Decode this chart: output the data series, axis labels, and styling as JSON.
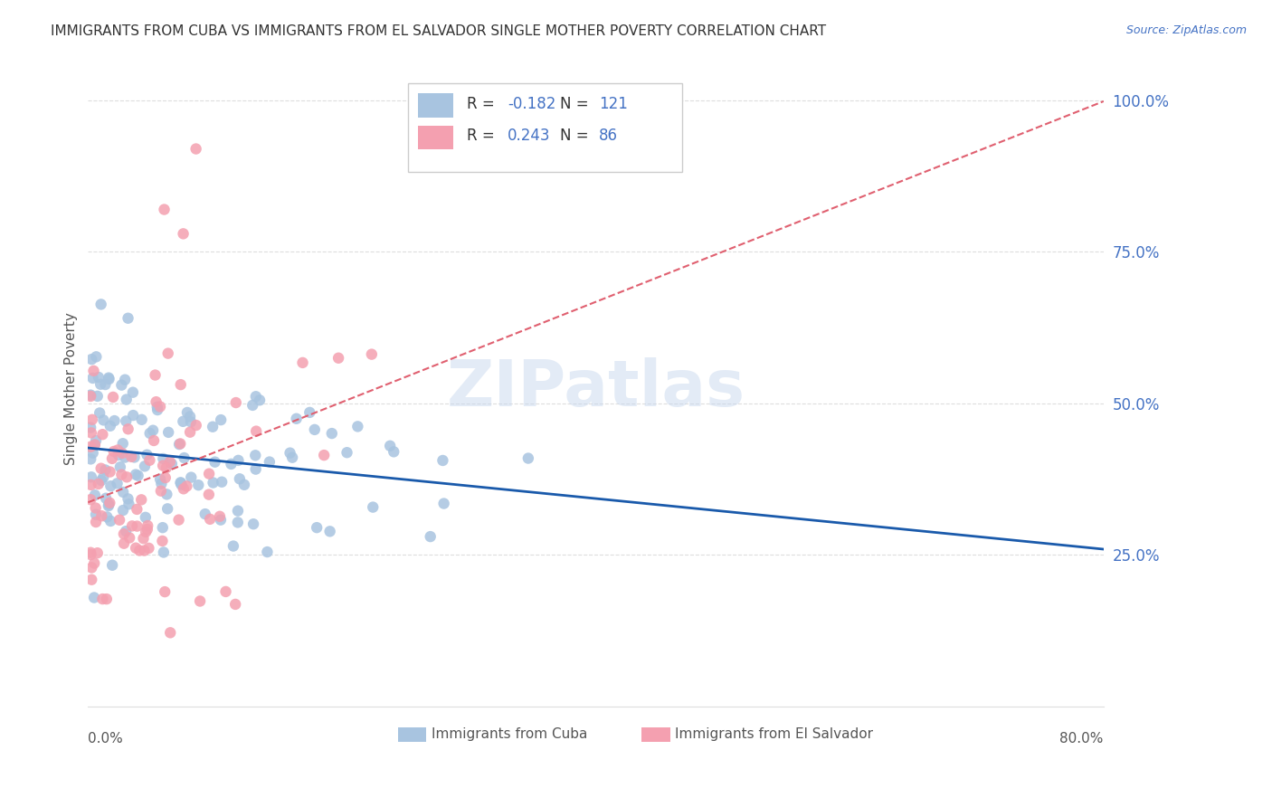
{
  "title": "IMMIGRANTS FROM CUBA VS IMMIGRANTS FROM EL SALVADOR SINGLE MOTHER POVERTY CORRELATION CHART",
  "source": "Source: ZipAtlas.com",
  "ylabel": "Single Mother Poverty",
  "right_yticks": [
    "100.0%",
    "75.0%",
    "50.0%",
    "25.0%"
  ],
  "right_ytick_vals": [
    1.0,
    0.75,
    0.5,
    0.25
  ],
  "legend_label1": "Immigrants from Cuba",
  "legend_label2": "Immigrants from El Salvador",
  "R1": -0.182,
  "N1": 121,
  "R2": 0.243,
  "N2": 86,
  "color_cuba": "#a8c4e0",
  "color_salvador": "#f4a0b0",
  "line_color_cuba": "#1a5aab",
  "line_color_salvador": "#e06070",
  "watermark": "ZIPatlas",
  "background_color": "#ffffff",
  "grid_color": "#dddddd",
  "title_color": "#333333",
  "label_color": "#4472c4",
  "xlim": [
    0.0,
    0.8
  ],
  "ylim": [
    0.0,
    1.05
  ]
}
